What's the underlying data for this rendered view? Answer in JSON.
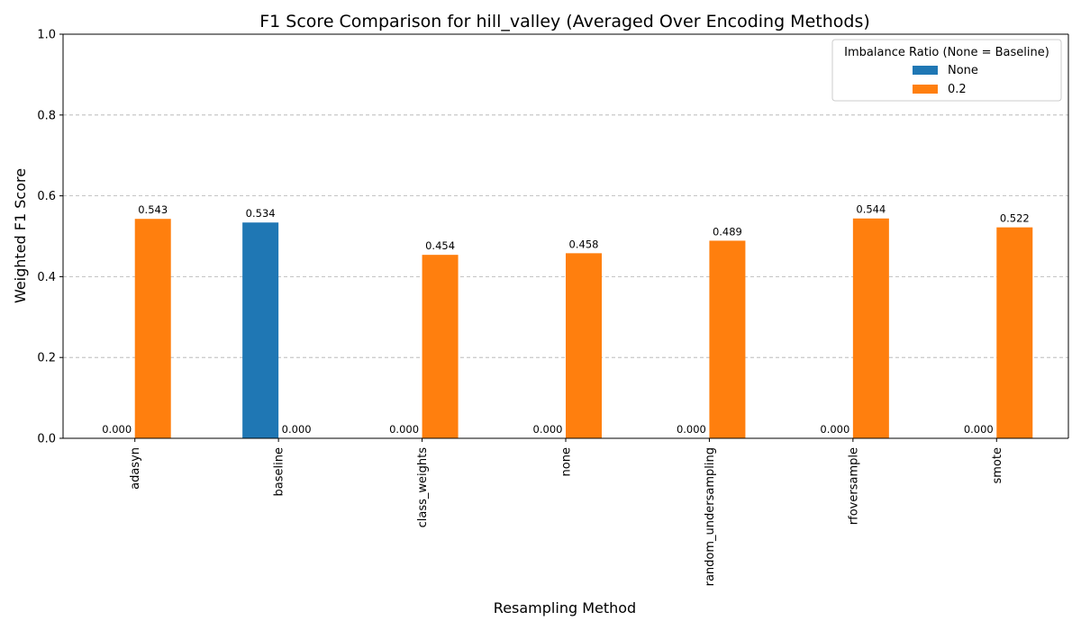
{
  "chart_data": {
    "type": "bar",
    "title": "F1 Score Comparison for hill_valley (Averaged Over Encoding Methods)",
    "xlabel": "Resampling Method",
    "ylabel": "Weighted F1 Score",
    "ylim": [
      0,
      1.0
    ],
    "yticks": [
      "0.0",
      "0.2",
      "0.4",
      "0.6",
      "0.8",
      "1.0"
    ],
    "grid": "y-dashed",
    "categories": [
      "adasyn",
      "baseline",
      "class_weights",
      "none",
      "random_undersampling",
      "rfoversample",
      "smote"
    ],
    "legend": {
      "title": "Imbalance Ratio (None = Baseline)",
      "placement": "top-right"
    },
    "series": [
      {
        "name": "None",
        "color": "#1f77b4",
        "values": [
          0.0,
          0.534,
          0.0,
          0.0,
          0.0,
          0.0,
          0.0
        ],
        "labels": [
          "0.000",
          "0.534",
          "0.000",
          "0.000",
          "0.000",
          "0.000",
          "0.000"
        ]
      },
      {
        "name": "0.2",
        "color": "#ff7f0e",
        "values": [
          0.543,
          0.0,
          0.454,
          0.458,
          0.489,
          0.544,
          0.522
        ],
        "labels": [
          "0.543",
          "0.000",
          "0.454",
          "0.458",
          "0.489",
          "0.544",
          "0.522"
        ]
      }
    ]
  }
}
